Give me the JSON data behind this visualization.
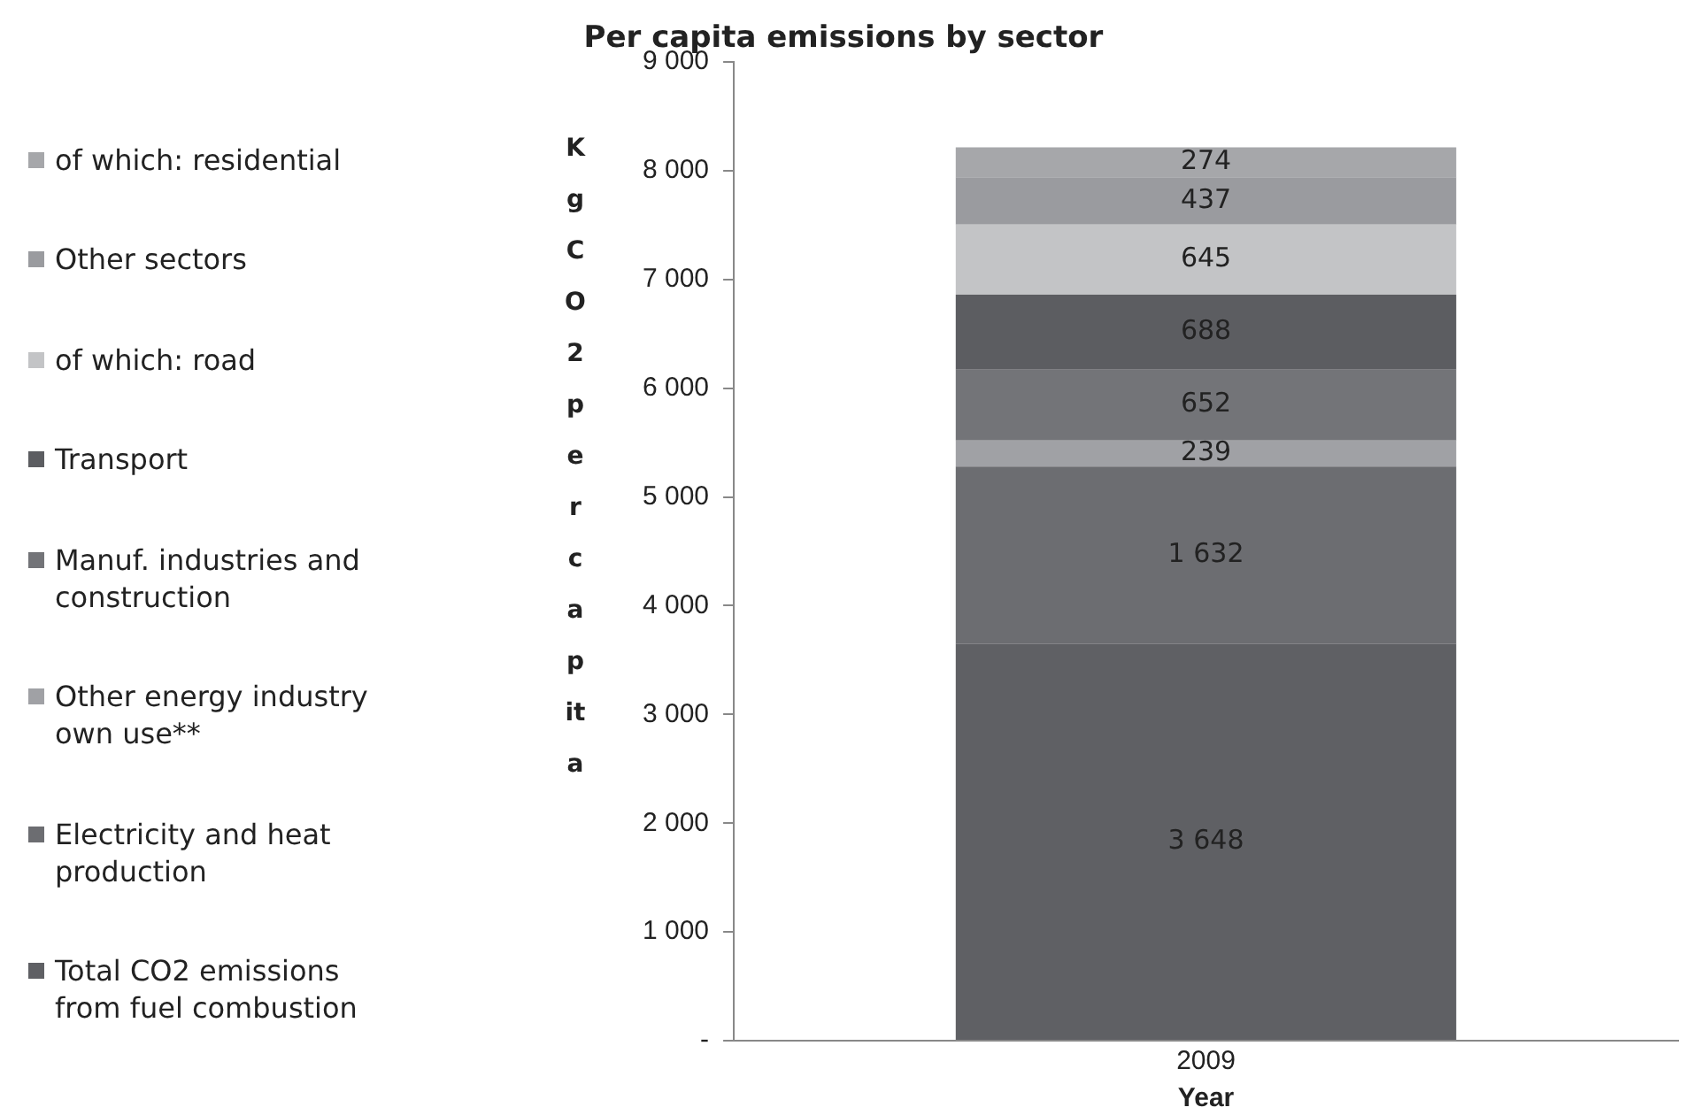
{
  "chart_data": {
    "type": "bar",
    "stacked": true,
    "title": "Per capita emissions by sector",
    "xlabel": "Year",
    "ylabel": "Kg CO2 per capita",
    "categories": [
      "2009"
    ],
    "ylim": [
      0,
      9000
    ],
    "yticks": [
      {
        "value": 0,
        "label": "-"
      },
      {
        "value": 1000,
        "label": "1 000"
      },
      {
        "value": 2000,
        "label": "2 000"
      },
      {
        "value": 3000,
        "label": "3 000"
      },
      {
        "value": 4000,
        "label": "4 000"
      },
      {
        "value": 5000,
        "label": "5 000"
      },
      {
        "value": 6000,
        "label": "6 000"
      },
      {
        "value": 7000,
        "label": "7 000"
      },
      {
        "value": 8000,
        "label": "8 000"
      },
      {
        "value": 9000,
        "label": "9 000"
      }
    ],
    "grid": false,
    "legend": "left",
    "series": [
      {
        "name": "Total CO2 emissions from fuel combustion",
        "color": "#5f6064",
        "values": [
          3648
        ],
        "value_labels": [
          "3 648"
        ]
      },
      {
        "name": "Electricity and heat production",
        "color": "#6c6d71",
        "values": [
          1632
        ],
        "value_labels": [
          "1 632"
        ]
      },
      {
        "name": "Other energy industry own use**",
        "color": "#a0a1a5",
        "values": [
          239
        ],
        "value_labels": [
          "239"
        ]
      },
      {
        "name": "Manuf. industries and construction",
        "color": "#737478",
        "values": [
          652
        ],
        "value_labels": [
          "652"
        ]
      },
      {
        "name": "Transport",
        "color": "#5c5d61",
        "values": [
          688
        ],
        "value_labels": [
          "688"
        ]
      },
      {
        "name": "of which: road",
        "color": "#c3c4c6",
        "values": [
          645
        ],
        "value_labels": [
          "645"
        ]
      },
      {
        "name": "Other sectors",
        "color": "#9a9b9f",
        "values": [
          437
        ],
        "value_labels": [
          "437"
        ]
      },
      {
        "name": "of which: residential",
        "color": "#a6a7aa",
        "values": [
          274
        ],
        "value_labels": [
          "274"
        ]
      }
    ]
  }
}
